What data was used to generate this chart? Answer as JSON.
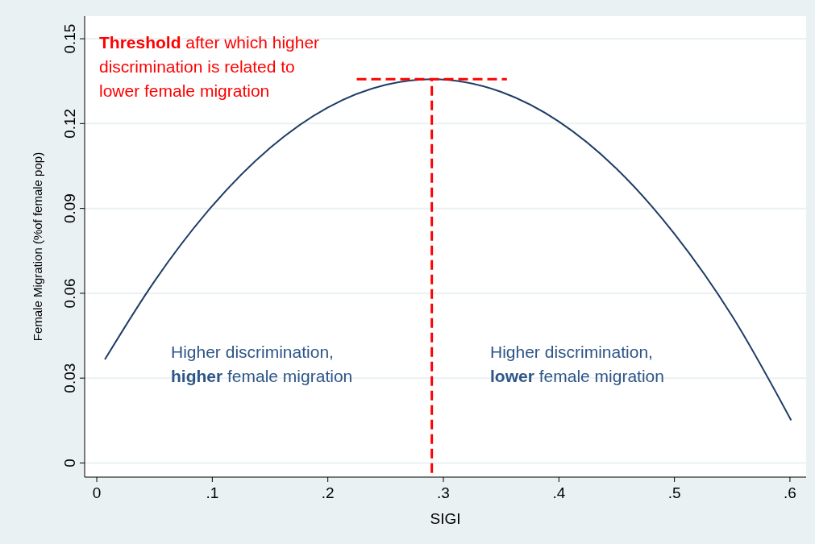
{
  "chart_data": {
    "type": "line",
    "xlabel": "SIGI",
    "ylabel": "Female Migration (%of female pop)",
    "xlim": [
      -0.0105,
      0.614
    ],
    "ylim": [
      -0.005,
      0.158
    ],
    "xticks": [
      {
        "value": 0,
        "label": "0"
      },
      {
        "value": 0.1,
        "label": ".1"
      },
      {
        "value": 0.2,
        "label": ".2"
      },
      {
        "value": 0.3,
        "label": ".3"
      },
      {
        "value": 0.4,
        "label": ".4"
      },
      {
        "value": 0.5,
        "label": ".5"
      },
      {
        "value": 0.6,
        "label": ".6"
      }
    ],
    "yticks": [
      0,
      0.03,
      0.06,
      0.09,
      0.12,
      0.15
    ],
    "grid": "y",
    "series": [
      {
        "color": "#1f3d66",
        "x": [
          0.007,
          0.05,
          0.1,
          0.15,
          0.2,
          0.25,
          0.29,
          0.35,
          0.4,
          0.45,
          0.5,
          0.55,
          0.601
        ],
        "values": [
          0.0366,
          0.0643,
          0.0909,
          0.1114,
          0.1257,
          0.1337,
          0.1357,
          0.1312,
          0.1207,
          0.104,
          0.081,
          0.0519,
          0.0151
        ]
      },
      {
        "color": "#ff0000",
        "line_style": "dashed",
        "x": [
          0.29,
          0.29
        ],
        "values": [
          -0.0035,
          0.1357
        ]
      },
      {
        "color": "#ff0000",
        "line_style": "dashed",
        "x": [
          0.225,
          0.355
        ],
        "values": [
          0.1357,
          0.1357
        ]
      }
    ],
    "annotations": [
      "Threshold after which higher\ndiscrimination is related to\nlower female migration",
      "Higher discrimination,\nhigher female migration",
      "Higher discrimination,\nlower female migration"
    ]
  }
}
